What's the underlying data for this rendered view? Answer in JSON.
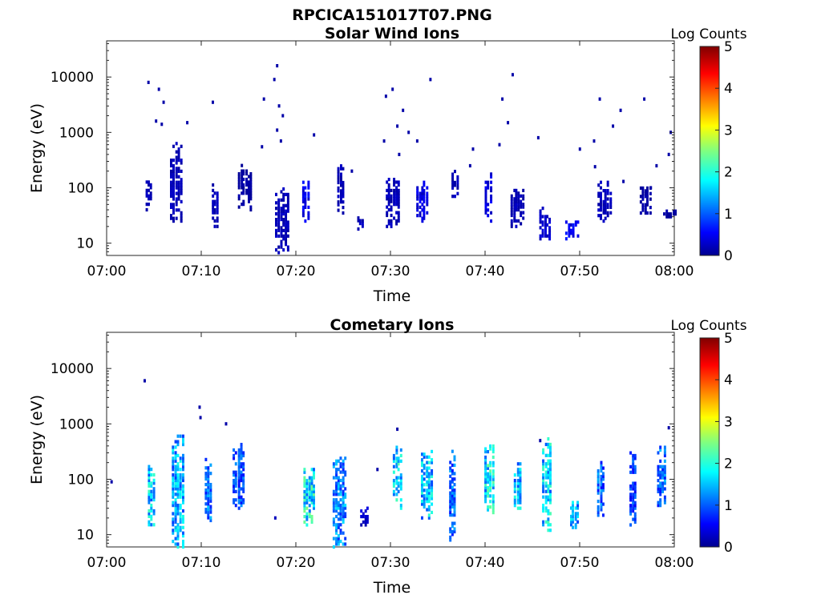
{
  "figure_title": "RPCICA151017T07.PNG",
  "chart_data": [
    {
      "type": "heatmap",
      "title": "Solar Wind Ions",
      "xlabel": "Time",
      "ylabel": "Energy (eV)",
      "x_ticks": [
        "07:00",
        "07:10",
        "07:20",
        "07:30",
        "07:40",
        "07:50",
        "08:00"
      ],
      "xlim_minutes": [
        0,
        60
      ],
      "y_ticks": [
        "10",
        "100",
        "1000",
        "10000"
      ],
      "y_scale": "log",
      "ylim": [
        6,
        45000
      ],
      "colorbar": {
        "label": "Log Counts",
        "ticks": [
          "0",
          "1",
          "2",
          "3",
          "4",
          "5"
        ],
        "range": [
          0,
          5
        ],
        "colormap": "jet"
      },
      "bursts": [
        {
          "t": 4.4,
          "emin": 40,
          "emax": 140,
          "v": 0.3
        },
        {
          "t": 7.3,
          "emin": 25,
          "emax": 700,
          "v": 0.3
        },
        {
          "t": 11.4,
          "emin": 20,
          "emax": 120,
          "v": 0.3
        },
        {
          "t": 14.6,
          "emin": 40,
          "emax": 260,
          "v": 0.2
        },
        {
          "t": 18.5,
          "emin": 6,
          "emax": 100,
          "v": 0.3
        },
        {
          "t": 21.0,
          "emin": 25,
          "emax": 140,
          "v": 0.6
        },
        {
          "t": 24.7,
          "emin": 35,
          "emax": 280,
          "v": 0.3
        },
        {
          "t": 26.8,
          "emin": 18,
          "emax": 30,
          "v": 0.3
        },
        {
          "t": 30.2,
          "emin": 20,
          "emax": 150,
          "v": 0.3
        },
        {
          "t": 33.3,
          "emin": 25,
          "emax": 140,
          "v": 0.5
        },
        {
          "t": 36.8,
          "emin": 70,
          "emax": 200,
          "v": 0.3
        },
        {
          "t": 40.3,
          "emin": 25,
          "emax": 180,
          "v": 0.5
        },
        {
          "t": 43.4,
          "emin": 20,
          "emax": 100,
          "v": 0.3
        },
        {
          "t": 46.3,
          "emin": 12,
          "emax": 45,
          "v": 0.4
        },
        {
          "t": 49.2,
          "emin": 12,
          "emax": 25,
          "v": 0.6
        },
        {
          "t": 52.6,
          "emin": 25,
          "emax": 130,
          "v": 0.3
        },
        {
          "t": 56.9,
          "emin": 35,
          "emax": 110,
          "v": 0.2
        },
        {
          "t": 59.5,
          "emin": 30,
          "emax": 40,
          "v": 0.2
        }
      ],
      "sparse": [
        {
          "t": 4.3,
          "e": 8000,
          "v": 0.2
        },
        {
          "t": 5.4,
          "e": 6000,
          "v": 0.2
        },
        {
          "t": 5.9,
          "e": 3500,
          "v": 0.2
        },
        {
          "t": 5.1,
          "e": 1600,
          "v": 0.2
        },
        {
          "t": 5.7,
          "e": 1400,
          "v": 0.2
        },
        {
          "t": 8.4,
          "e": 1500,
          "v": 0.2
        },
        {
          "t": 11.1,
          "e": 3500,
          "v": 0.2
        },
        {
          "t": 16.3,
          "e": 550,
          "v": 0.2
        },
        {
          "t": 16.5,
          "e": 4000,
          "v": 0.2
        },
        {
          "t": 17.9,
          "e": 16000,
          "v": 0.2
        },
        {
          "t": 17.6,
          "e": 9000,
          "v": 0.2
        },
        {
          "t": 18.1,
          "e": 3000,
          "v": 0.2
        },
        {
          "t": 18.5,
          "e": 2000,
          "v": 0.2
        },
        {
          "t": 17.9,
          "e": 1100,
          "v": 0.2
        },
        {
          "t": 18.3,
          "e": 700,
          "v": 0.2
        },
        {
          "t": 21.8,
          "e": 900,
          "v": 0.2
        },
        {
          "t": 25.8,
          "e": 200,
          "v": 0.2
        },
        {
          "t": 29.4,
          "e": 4500,
          "v": 0.2
        },
        {
          "t": 30.1,
          "e": 6000,
          "v": 0.2
        },
        {
          "t": 31.2,
          "e": 2500,
          "v": 0.2
        },
        {
          "t": 30.6,
          "e": 1300,
          "v": 0.2
        },
        {
          "t": 31.8,
          "e": 1000,
          "v": 0.2
        },
        {
          "t": 29.2,
          "e": 700,
          "v": 0.2
        },
        {
          "t": 30.8,
          "e": 400,
          "v": 0.2
        },
        {
          "t": 34.1,
          "e": 9000,
          "v": 0.2
        },
        {
          "t": 32.7,
          "e": 700,
          "v": 0.2
        },
        {
          "t": 38.6,
          "e": 500,
          "v": 0.2
        },
        {
          "t": 41.7,
          "e": 4000,
          "v": 0.2
        },
        {
          "t": 42.8,
          "e": 11000,
          "v": 0.2
        },
        {
          "t": 42.3,
          "e": 1500,
          "v": 0.2
        },
        {
          "t": 41.4,
          "e": 600,
          "v": 0.2
        },
        {
          "t": 45.5,
          "e": 800,
          "v": 0.2
        },
        {
          "t": 38.3,
          "e": 250,
          "v": 0.2
        },
        {
          "t": 51.4,
          "e": 700,
          "v": 0.2
        },
        {
          "t": 52.0,
          "e": 4000,
          "v": 0.2
        },
        {
          "t": 53.4,
          "e": 1300,
          "v": 0.2
        },
        {
          "t": 54.2,
          "e": 2500,
          "v": 0.2
        },
        {
          "t": 56.7,
          "e": 4000,
          "v": 0.2
        },
        {
          "t": 59.5,
          "e": 1000,
          "v": 0.2
        },
        {
          "t": 59.3,
          "e": 400,
          "v": 0.2
        },
        {
          "t": 57.4,
          "e": 100,
          "v": 0.2
        },
        {
          "t": 54.5,
          "e": 130,
          "v": 0.2
        },
        {
          "t": 49.9,
          "e": 500,
          "v": 0.2
        },
        {
          "t": 51.5,
          "e": 240,
          "v": 0.2
        },
        {
          "t": 58.0,
          "e": 250,
          "v": 0.2
        }
      ]
    },
    {
      "type": "heatmap",
      "title": "Cometary Ions",
      "xlabel": "Time",
      "ylabel": "Energy (eV)",
      "x_ticks": [
        "07:00",
        "07:10",
        "07:20",
        "07:30",
        "07:40",
        "07:50",
        "08:00"
      ],
      "xlim_minutes": [
        0,
        60
      ],
      "y_ticks": [
        "10",
        "100",
        "1000",
        "10000"
      ],
      "y_scale": "log",
      "ylim": [
        6,
        45000
      ],
      "colorbar": {
        "label": "Log Counts",
        "ticks": [
          "0",
          "1",
          "2",
          "3",
          "4",
          "5"
        ],
        "range": [
          0,
          5
        ],
        "colormap": "jet"
      },
      "bursts": [
        {
          "t": 4.7,
          "emin": 12,
          "emax": 180,
          "v": 1.8
        },
        {
          "t": 7.5,
          "emin": 6,
          "emax": 700,
          "v": 1.6
        },
        {
          "t": 10.7,
          "emin": 18,
          "emax": 250,
          "v": 1.3
        },
        {
          "t": 13.9,
          "emin": 30,
          "emax": 450,
          "v": 1.1
        },
        {
          "t": 21.4,
          "emin": 15,
          "emax": 150,
          "v": 2.0
        },
        {
          "t": 24.6,
          "emin": 6,
          "emax": 260,
          "v": 1.4
        },
        {
          "t": 27.2,
          "emin": 15,
          "emax": 30,
          "v": 0.4
        },
        {
          "t": 30.7,
          "emin": 30,
          "emax": 400,
          "v": 1.9
        },
        {
          "t": 33.8,
          "emin": 20,
          "emax": 350,
          "v": 1.7
        },
        {
          "t": 36.5,
          "emin": 8,
          "emax": 320,
          "v": 1.2
        },
        {
          "t": 40.4,
          "emin": 25,
          "emax": 400,
          "v": 1.9
        },
        {
          "t": 43.4,
          "emin": 30,
          "emax": 200,
          "v": 1.7
        },
        {
          "t": 46.5,
          "emin": 12,
          "emax": 550,
          "v": 1.8
        },
        {
          "t": 49.4,
          "emin": 12,
          "emax": 40,
          "v": 1.6
        },
        {
          "t": 52.2,
          "emin": 20,
          "emax": 250,
          "v": 1.2
        },
        {
          "t": 55.6,
          "emin": 15,
          "emax": 350,
          "v": 1.0
        },
        {
          "t": 58.6,
          "emin": 30,
          "emax": 400,
          "v": 1.3
        }
      ],
      "sparse": [
        {
          "t": 3.9,
          "e": 6000,
          "v": 0.2
        },
        {
          "t": 9.7,
          "e": 2000,
          "v": 0.2
        },
        {
          "t": 9.8,
          "e": 1300,
          "v": 0.2
        },
        {
          "t": 12.5,
          "e": 1000,
          "v": 0.2
        },
        {
          "t": 30.6,
          "e": 800,
          "v": 0.2
        },
        {
          "t": 45.7,
          "e": 500,
          "v": 0.2
        },
        {
          "t": 59.3,
          "e": 850,
          "v": 0.2
        },
        {
          "t": 17.7,
          "e": 20,
          "v": 0.3
        },
        {
          "t": 28.5,
          "e": 150,
          "v": 0.2
        },
        {
          "t": 0.4,
          "e": 90,
          "v": 0.2
        }
      ]
    }
  ]
}
